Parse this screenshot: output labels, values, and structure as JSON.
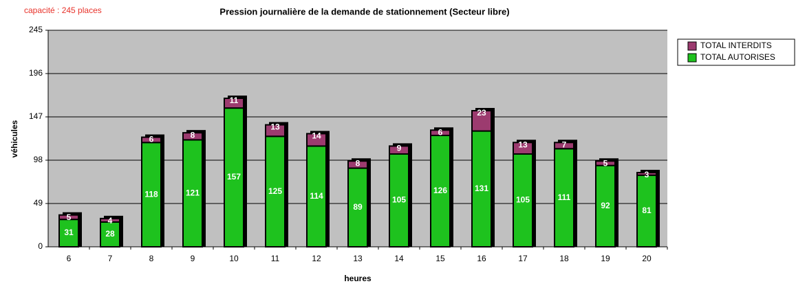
{
  "chart_data": {
    "type": "stacked_bar",
    "title": "Pression journalière de la demande de stationnement  (Secteur libre)",
    "annotation": "capacité : 245 places",
    "xlabel": "heures",
    "ylabel": "véhicules",
    "categories": [
      "6",
      "7",
      "8",
      "9",
      "10",
      "11",
      "12",
      "13",
      "14",
      "15",
      "16",
      "17",
      "18",
      "19",
      "20"
    ],
    "series": [
      {
        "name": "TOTAL AUTORISES",
        "color": "#1ec21e",
        "values": [
          31,
          28,
          118,
          121,
          157,
          125,
          114,
          89,
          105,
          126,
          131,
          105,
          111,
          92,
          81
        ]
      },
      {
        "name": "TOTAL INTERDITS",
        "color": "#9c3b6f",
        "values": [
          5,
          4,
          6,
          8,
          11,
          13,
          14,
          8,
          9,
          6,
          23,
          13,
          7,
          5,
          3
        ]
      }
    ],
    "ylim": [
      0,
      245
    ],
    "yticks": [
      0,
      49,
      98,
      147,
      196,
      245
    ],
    "grid": true,
    "legend": "top-right"
  }
}
